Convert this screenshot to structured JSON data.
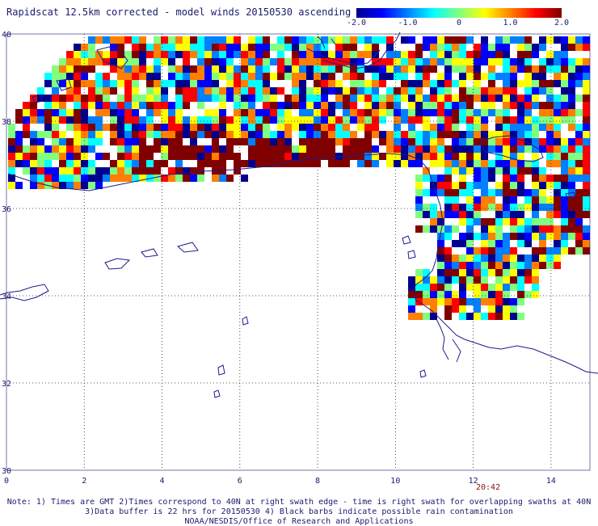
{
  "title": "Rapidscat 12.5km corrected - model winds 20150530 ascending",
  "colorbar": {
    "ticks": [
      {
        "value": -2.0,
        "label": "-2.0"
      },
      {
        "value": -1.0,
        "label": "-1.0"
      },
      {
        "value": 0,
        "label": "0"
      },
      {
        "value": 1.0,
        "label": "1.0"
      },
      {
        "value": 2.0,
        "label": "2.0"
      }
    ],
    "range": [
      -2.0,
      2.0
    ],
    "colors": [
      "#00008f",
      "#0000ff",
      "#0080ff",
      "#00ffff",
      "#80ff80",
      "#ffff00",
      "#ff8000",
      "#ff0000",
      "#800000"
    ]
  },
  "map": {
    "lon_range": [
      0,
      15
    ],
    "lat_range": [
      30,
      40
    ],
    "x_ticks": [
      {
        "value": 0,
        "label": "0"
      },
      {
        "value": 2,
        "label": "2"
      },
      {
        "value": 4,
        "label": "4"
      },
      {
        "value": 6,
        "label": "6"
      },
      {
        "value": 8,
        "label": "8"
      },
      {
        "value": 10,
        "label": "10"
      },
      {
        "value": 12,
        "label": "12"
      },
      {
        "value": 14,
        "label": "14"
      }
    ],
    "y_ticks": [
      {
        "value": 40,
        "label": "40"
      },
      {
        "value": 38,
        "label": "38"
      },
      {
        "value": 36,
        "label": "36"
      },
      {
        "value": 34,
        "label": "34"
      },
      {
        "value": 32,
        "label": "32"
      },
      {
        "value": 30,
        "label": "30"
      }
    ],
    "grid": "dotted",
    "coastline_color": "#1b1b8e"
  },
  "timestamp": "20:42",
  "notes": {
    "line1": "Note: 1) Times are GMT 2)Times correspond to 40N at right swath edge - time is right swath for overlapping swaths at 40N",
    "line2": "3)Data buffer is 22 hrs for 20150530 4) Black barbs indicate possible rain contamination",
    "line3": "NOAA/NESDIS/Office of Research and Applications"
  }
}
